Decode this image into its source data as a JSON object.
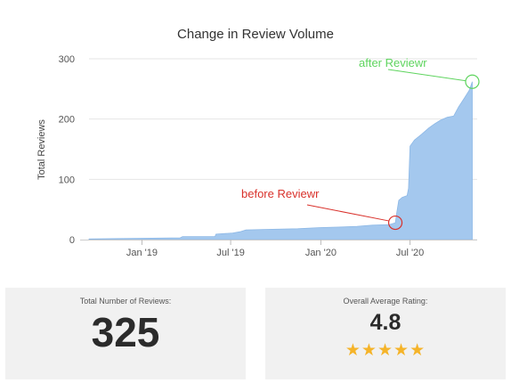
{
  "chart_data": {
    "type": "area",
    "title": "Change in Review Volume",
    "ylabel": "Total Reviews",
    "xlabel": "",
    "ylim": [
      0,
      300
    ],
    "yticks": [
      0,
      100,
      200,
      300
    ],
    "xticks": [
      {
        "label": "Jan '19",
        "date": "2019-01-01"
      },
      {
        "label": "Jul '19",
        "date": "2019-07-01"
      },
      {
        "label": "Jan '20",
        "date": "2020-01-01"
      },
      {
        "label": "Jul '20",
        "date": "2020-07-01"
      }
    ],
    "xlim": [
      "2018-09-15",
      "2020-11-15"
    ],
    "grid": true,
    "series": [
      {
        "color": "#a4c8ee",
        "points": [
          {
            "date": "2018-09-15",
            "value": 1
          },
          {
            "date": "2018-12-15",
            "value": 2
          },
          {
            "date": "2019-03-20",
            "value": 3
          },
          {
            "date": "2019-03-25",
            "value": 5
          },
          {
            "date": "2019-05-30",
            "value": 5
          },
          {
            "date": "2019-06-01",
            "value": 9
          },
          {
            "date": "2019-07-05",
            "value": 11
          },
          {
            "date": "2019-07-20",
            "value": 13
          },
          {
            "date": "2019-08-01",
            "value": 16
          },
          {
            "date": "2019-09-15",
            "value": 17
          },
          {
            "date": "2019-11-15",
            "value": 18
          },
          {
            "date": "2019-12-31",
            "value": 20
          },
          {
            "date": "2020-02-15",
            "value": 21
          },
          {
            "date": "2020-03-15",
            "value": 22
          },
          {
            "date": "2020-04-15",
            "value": 24
          },
          {
            "date": "2020-05-20",
            "value": 25
          },
          {
            "date": "2020-06-01",
            "value": 28
          },
          {
            "date": "2020-06-04",
            "value": 45
          },
          {
            "date": "2020-06-08",
            "value": 65
          },
          {
            "date": "2020-06-15",
            "value": 70
          },
          {
            "date": "2020-06-25",
            "value": 73
          },
          {
            "date": "2020-06-28",
            "value": 85
          },
          {
            "date": "2020-07-01",
            "value": 155
          },
          {
            "date": "2020-07-10",
            "value": 165
          },
          {
            "date": "2020-07-25",
            "value": 175
          },
          {
            "date": "2020-08-08",
            "value": 185
          },
          {
            "date": "2020-08-20",
            "value": 192
          },
          {
            "date": "2020-09-01",
            "value": 198
          },
          {
            "date": "2020-09-15",
            "value": 203
          },
          {
            "date": "2020-09-28",
            "value": 205
          },
          {
            "date": "2020-10-08",
            "value": 220
          },
          {
            "date": "2020-10-20",
            "value": 235
          },
          {
            "date": "2020-10-30",
            "value": 248
          },
          {
            "date": "2020-11-05",
            "value": 262
          }
        ]
      }
    ],
    "annotations": [
      {
        "text": "before Reviewr",
        "date": "2020-06-01",
        "value": 28,
        "color": "#d9312b"
      },
      {
        "text": "after Reviewr",
        "date": "2020-11-05",
        "value": 262,
        "color": "#5ed45e"
      }
    ]
  },
  "stats": {
    "total": {
      "label": "Total Number of Reviews:",
      "value": "325"
    },
    "rating": {
      "label": "Overall Average Rating:",
      "value": "4.8",
      "stars": 5,
      "star_color": "#f5b42a"
    }
  }
}
